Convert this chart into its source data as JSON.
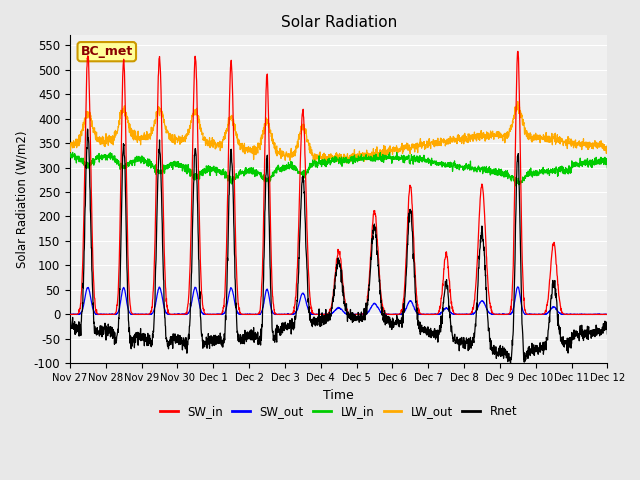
{
  "title": "Solar Radiation",
  "xlabel": "Time",
  "ylabel": "Solar Radiation (W/m2)",
  "ylim": [
    -100,
    570
  ],
  "yticks": [
    -100,
    -50,
    0,
    50,
    100,
    150,
    200,
    250,
    300,
    350,
    400,
    450,
    500,
    550
  ],
  "colors": {
    "SW_in": "#ff0000",
    "SW_out": "#0000ff",
    "LW_in": "#00cc00",
    "LW_out": "#ffaa00",
    "Rnet": "#000000"
  },
  "label": "BC_met",
  "label_bg": "#ffff99",
  "label_border": "#cc9900",
  "label_text_color": "#880000",
  "bg_color": "#e8e8e8",
  "plot_bg": "#f0f0f0",
  "n_days": 15,
  "num_points": 2160,
  "sw_peaks": [
    530,
    520,
    525,
    525,
    515,
    490,
    415,
    130,
    210,
    265,
    125,
    265,
    540,
    145,
    0
  ],
  "sw_widths": [
    0.08,
    0.07,
    0.08,
    0.08,
    0.08,
    0.07,
    0.09,
    0.1,
    0.1,
    0.09,
    0.08,
    0.1,
    0.07,
    0.09,
    0.07
  ],
  "tick_labels": [
    "Nov 27",
    "Nov 28",
    "Nov 29",
    "Nov 30",
    "Dec 1",
    "Dec 2",
    "Dec 3",
    "Dec 4",
    "Dec 5",
    "Dec 6",
    "Dec 7",
    "Dec 8",
    "Dec 9",
    "Dec 10",
    "Dec 11",
    "Dec 12"
  ]
}
